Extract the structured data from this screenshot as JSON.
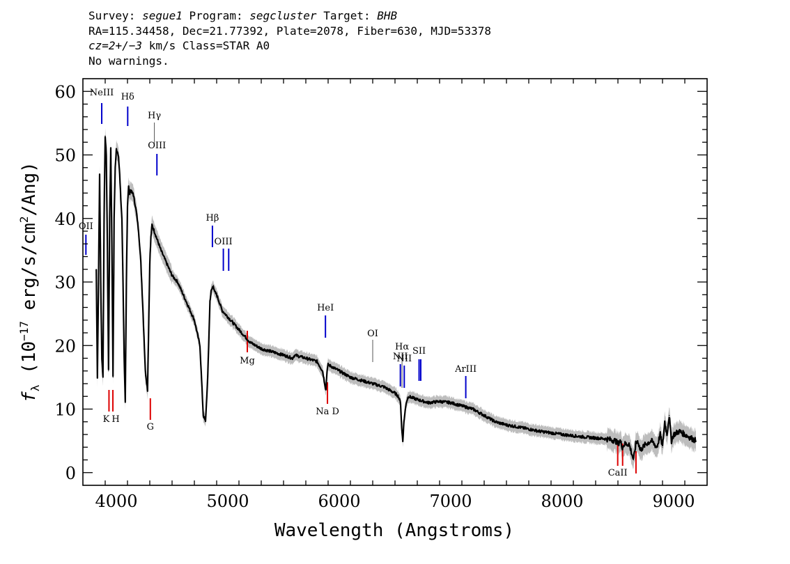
{
  "header": {
    "line1": {
      "survey_label": "Survey:",
      "survey": "segue1",
      "program_label": "Program:",
      "program": "segcluster",
      "target_label": "Target:",
      "target": "BHB"
    },
    "line2": "RA=115.34458, Dec=21.77392, Plate=2078, Fiber=630, MJD=53378",
    "line3": {
      "cz": "cz=2+/−3",
      "rest": "km/s Class=STAR A0"
    },
    "line4": "No warnings."
  },
  "chart_data": {
    "type": "line",
    "xlabel": "Wavelength (Angstroms)",
    "ylabel": "fλ (10⁻¹⁷ erg/s/cm²/Ang)",
    "xlim": [
      3700,
      9300
    ],
    "ylim": [
      -2,
      62
    ],
    "xticks": [
      4000,
      5000,
      6000,
      7000,
      8000,
      9000
    ],
    "yticks": [
      0,
      10,
      20,
      30,
      40,
      50,
      60
    ],
    "colors": {
      "spectrum": "#000000",
      "error_band": "#bdbdbd",
      "emission": "#0000cc",
      "absorption": "#dd0000",
      "sky": "#555555"
    },
    "series": [
      {
        "x": [
          3820,
          3830,
          3840,
          3850,
          3860,
          3870,
          3880,
          3890,
          3900,
          3910,
          3920,
          3930,
          3940,
          3950,
          3960,
          3970,
          3980,
          3990,
          4000,
          4010,
          4020,
          4030,
          4040,
          4050,
          4060,
          4070,
          4080,
          4090,
          4100,
          4110,
          4120,
          4130,
          4140,
          4150,
          4160,
          4170,
          4180,
          4200,
          4220,
          4240,
          4260,
          4280,
          4300,
          4310,
          4320,
          4330,
          4340,
          4350,
          4360,
          4370,
          4380,
          4400,
          4450,
          4500,
          4550,
          4600,
          4650,
          4700,
          4750,
          4780,
          4800,
          4820,
          4840,
          4850,
          4860,
          4870,
          4880,
          4900,
          4920,
          4950,
          5000,
          5050,
          5100,
          5150,
          5200,
          5300,
          5400,
          5500,
          5580,
          5600,
          5700,
          5800,
          5850,
          5880,
          5890,
          5900,
          5950,
          6000,
          6100,
          6200,
          6300,
          6400,
          6450,
          6500,
          6530,
          6550,
          6560,
          6570,
          6580,
          6600,
          6620,
          6700,
          6800,
          6900,
          7000,
          7100,
          7200,
          7300,
          7400,
          7500,
          7600,
          7800,
          8000,
          8200,
          8400,
          8480,
          8500,
          8520,
          8540,
          8560,
          8600,
          8640,
          8660,
          8680,
          8700,
          8750,
          8800,
          8850,
          8880,
          8900,
          8920,
          8940,
          8960,
          8980,
          9000,
          9050,
          9100,
          9150,
          9200
        ],
        "y": [
          32,
          15,
          30,
          47,
          30,
          18,
          15,
          40,
          53,
          50,
          35,
          16,
          40,
          51,
          36,
          15,
          40,
          48,
          51,
          50.5,
          49.5,
          47,
          43,
          40,
          30,
          18,
          11,
          30,
          42,
          45,
          44,
          44.5,
          44,
          44,
          43,
          42,
          41,
          38,
          33,
          25,
          16,
          13,
          33,
          37,
          39,
          38.5,
          38,
          37.5,
          37,
          36.5,
          36,
          35,
          33,
          31,
          30,
          28,
          26,
          24,
          20,
          9,
          8,
          15,
          27,
          28.5,
          29,
          29.5,
          28.5,
          28,
          27,
          25.5,
          24.5,
          23.5,
          22.5,
          21.5,
          20.5,
          19.5,
          19,
          18.5,
          18,
          18.5,
          18,
          17.5,
          16,
          13,
          16,
          17,
          16.5,
          16,
          15,
          14.5,
          14,
          13.5,
          13,
          12.5,
          12,
          11,
          7,
          5,
          8,
          11,
          12,
          11.5,
          11,
          11.2,
          11,
          10.5,
          10,
          9,
          8,
          7.5,
          7.2,
          6.5,
          6,
          5.6,
          5.3,
          5,
          4.5,
          5,
          4,
          4.5,
          4.5,
          2,
          4.5,
          5,
          3.5,
          4.5,
          5,
          4,
          6,
          4,
          8,
          6,
          9,
          5,
          6,
          6.5,
          6,
          5.5,
          5
        ]
      }
    ],
    "lines": [
      {
        "label": "NeIII",
        "x": 3869,
        "kind": "emission"
      },
      {
        "label": "Hδ",
        "x": 4102,
        "kind": "emission"
      },
      {
        "label": "Hγ",
        "x": 4341,
        "kind": "sky"
      },
      {
        "label": "OIII",
        "x": 4364,
        "kind": "emission"
      },
      {
        "label": "OII",
        "x": 3727,
        "kind": "emission"
      },
      {
        "label": "Hβ",
        "x": 4862,
        "kind": "emission"
      },
      {
        "label": "OIII",
        "x": 4960,
        "kind": "emission"
      },
      {
        "label": "",
        "x": 5008,
        "kind": "emission"
      },
      {
        "label": "HeI",
        "x": 5876,
        "kind": "emission"
      },
      {
        "label": "OI",
        "x": 6300,
        "kind": "sky"
      },
      {
        "label": "NII",
        "x": 6548,
        "kind": "emission"
      },
      {
        "label": "Hα",
        "x": 6563,
        "kind": "sky"
      },
      {
        "label": "NII",
        "x": 6583,
        "kind": "emission"
      },
      {
        "label": "SII",
        "x": 6716,
        "kind": "emission"
      },
      {
        "label": "",
        "x": 6731,
        "kind": "emission"
      },
      {
        "label": "ArIII",
        "x": 7135,
        "kind": "emission"
      },
      {
        "label": "K",
        "x": 3934,
        "kind": "absorption"
      },
      {
        "label": "H",
        "x": 3969,
        "kind": "absorption"
      },
      {
        "label": "G",
        "x": 4305,
        "kind": "absorption"
      },
      {
        "label": "Mg",
        "x": 5175,
        "kind": "absorption"
      },
      {
        "label": "Na D",
        "x": 5894,
        "kind": "absorption"
      },
      {
        "label": "CaII",
        "x": 8498,
        "kind": "absorption"
      },
      {
        "label": "",
        "x": 8542,
        "kind": "absorption"
      },
      {
        "label": "",
        "x": 8662,
        "kind": "absorption"
      }
    ]
  }
}
